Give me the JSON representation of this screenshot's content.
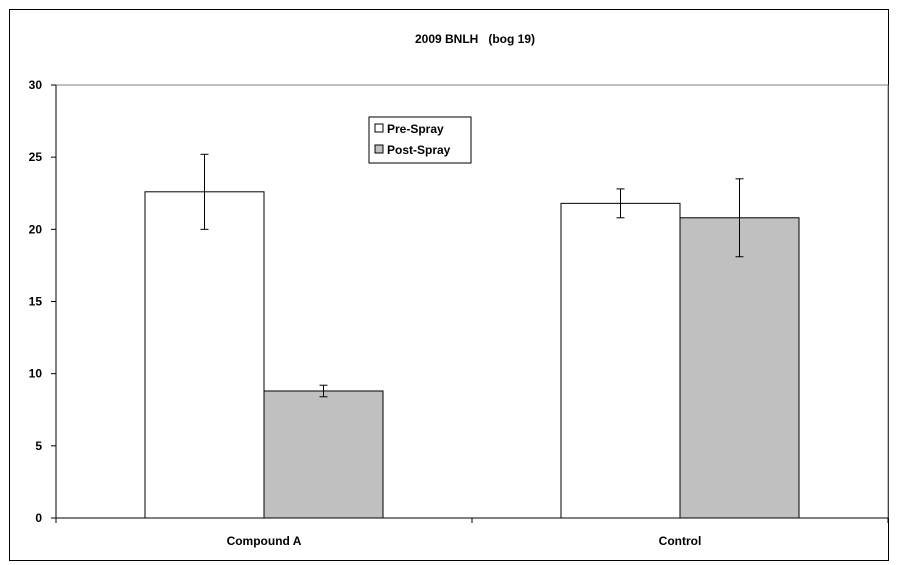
{
  "chart_data": {
    "type": "bar",
    "title": "2009 BNLH   (bog 19)",
    "xlabel": "",
    "ylabel": "",
    "categories": [
      "Compound A",
      "Control"
    ],
    "series": [
      {
        "name": "Pre-Spray",
        "values": [
          22.6,
          21.8
        ],
        "errors": [
          2.6,
          1.0
        ],
        "color": "#ffffff"
      },
      {
        "name": "Post-Spray",
        "values": [
          8.8,
          20.8
        ],
        "errors": [
          0.4,
          2.7
        ],
        "color": "#c0c0c0"
      }
    ],
    "ylim": [
      0,
      30
    ],
    "yticks": [
      0,
      5,
      10,
      15,
      20,
      25,
      30
    ],
    "grid": false,
    "legend_position": "top-center"
  }
}
